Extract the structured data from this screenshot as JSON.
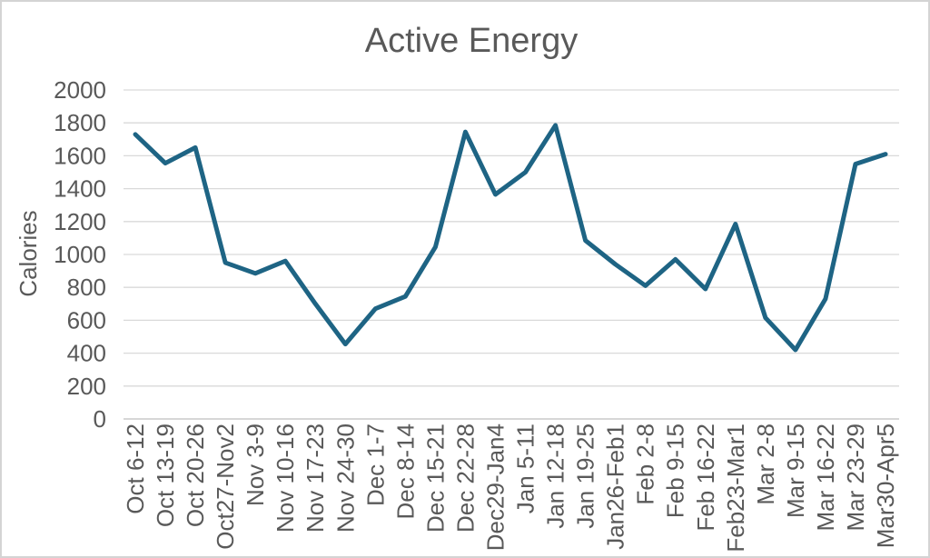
{
  "chart_data": {
    "type": "line",
    "title": "Active Energy",
    "ylabel": "Calories",
    "xlabel": "",
    "categories": [
      "Oct 6-12",
      "Oct 13-19",
      "Oct 20-26",
      "Oct27-Nov2",
      "Nov 3-9",
      "Nov 10-16",
      "Nov 17-23",
      "Nov 24-30",
      "Dec 1-7",
      "Dec 8-14",
      "Dec 15-21",
      "Dec 22-28",
      "Dec29-Jan4",
      "Jan 5-11",
      "Jan 12-18",
      "Jan 19-25",
      "Jan26-Feb1",
      "Feb 2-8",
      "Feb 9-15",
      "Feb 16-22",
      "Feb23-Mar1",
      "Mar 2-8",
      "Mar 9-15",
      "Mar 16-22",
      "Mar 23-29",
      "Mar30-Apr5"
    ],
    "series": [
      {
        "name": "Active Energy",
        "values": [
          1730,
          1555,
          1650,
          950,
          885,
          960,
          700,
          455,
          670,
          745,
          1045,
          1745,
          1365,
          1500,
          1785,
          1085,
          940,
          810,
          970,
          790,
          1185,
          615,
          420,
          730,
          1550,
          1610
        ]
      }
    ],
    "ylim": [
      0,
      2000
    ],
    "yticks": [
      0,
      200,
      400,
      600,
      800,
      1000,
      1200,
      1400,
      1600,
      1800,
      2000
    ],
    "grid": true,
    "legend": false,
    "colors": {
      "line": "#1e6484",
      "text": "#595959",
      "grid": "#d9d9d9",
      "axis": "#bfbfbf",
      "background": "#ffffff",
      "frame": "#d4d4d4"
    }
  }
}
